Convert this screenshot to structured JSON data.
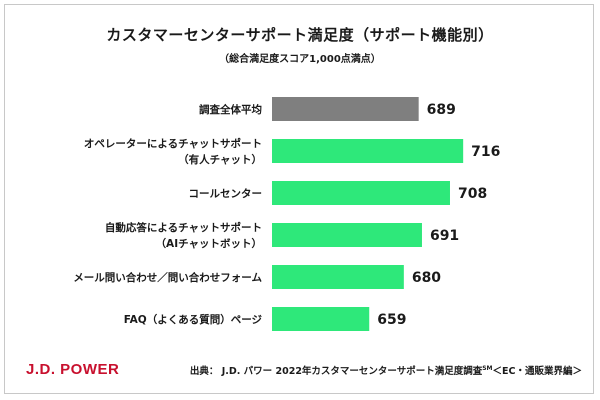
{
  "title": "カスタマーセンターサポート満足度（サポート機能別）",
  "subtitle": "（総合満足度スコア1,000点満点）",
  "logo_text": "J.D. POWER",
  "source": {
    "prefix": "出典： J.D. パワー 2022年カスタマーセンターサポート満足度調査",
    "superscript": "SM",
    "suffix": "＜EC・通販業界編＞"
  },
  "colors": {
    "baseline_bar": "#7f7f7f",
    "channel_bar": "#2ee87a",
    "logo": "#c8102e"
  },
  "chart_data": {
    "type": "bar",
    "orientation": "horizontal",
    "categories": [
      [
        "調査全体平均"
      ],
      [
        "オペレーターによるチャットサポート",
        "（有人チャット）"
      ],
      [
        "コールセンター"
      ],
      [
        "自動応答によるチャットサポート",
        "（AIチャットボット）"
      ],
      [
        "メール問い合わせ／問い合わせフォーム"
      ],
      [
        "FAQ（よくある質問）ページ"
      ]
    ],
    "values": [
      689,
      716,
      708,
      691,
      680,
      659
    ],
    "bar_colors": [
      "#7f7f7f",
      "#2ee87a",
      "#2ee87a",
      "#2ee87a",
      "#2ee87a",
      "#2ee87a"
    ],
    "xlim": [
      600,
      725
    ],
    "grid": false,
    "legend": "none"
  }
}
